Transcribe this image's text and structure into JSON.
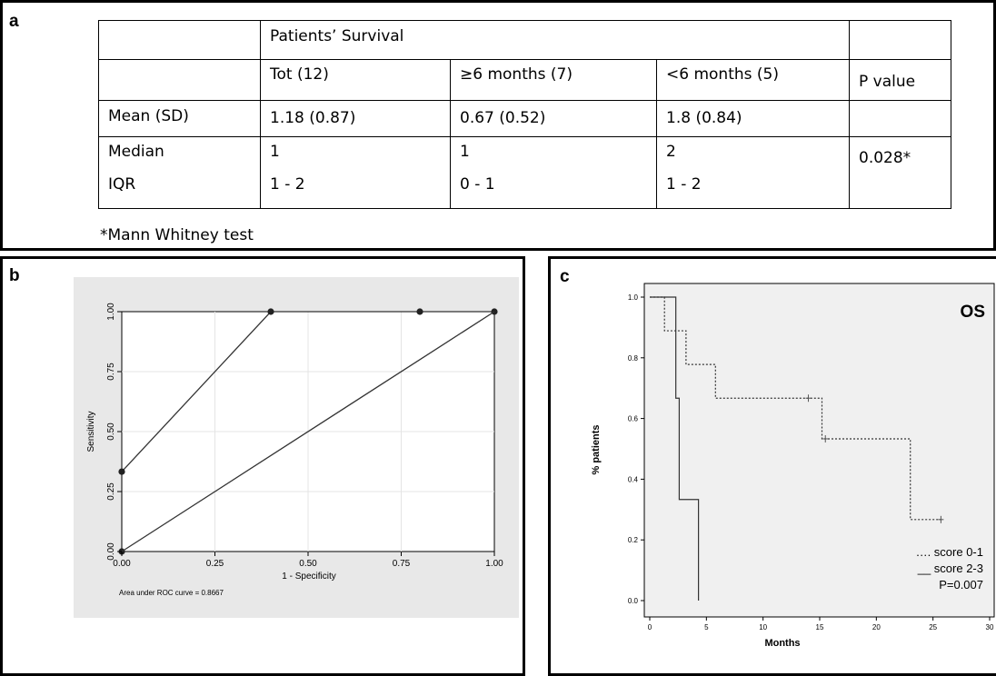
{
  "panel_a": {
    "letter": "a",
    "table": {
      "group_header": "Patients’ Survival",
      "columns": [
        "Tot (12)",
        "≥6 months (7)",
        "<6 months (5)",
        "P value"
      ],
      "rows": [
        {
          "label": "Mean (SD)",
          "values": [
            "1.18 (0.87)",
            "0.67 (0.52)",
            "1.8 (0.84)"
          ]
        },
        {
          "label": "Median",
          "values": [
            "1",
            "1",
            "2"
          ]
        },
        {
          "label": "IQR",
          "values": [
            "1 - 2",
            "0 - 1",
            "1 - 2"
          ]
        }
      ],
      "p_value": "0.028*"
    },
    "footnote": "*Mann Whitney test"
  },
  "panel_b": {
    "letter": "b"
  },
  "panel_c": {
    "letter": "c"
  },
  "chart_data": [
    {
      "type": "line",
      "xlabel": "1 - Specificity",
      "ylabel": "Sensitivity",
      "xlim": [
        0,
        1
      ],
      "ylim": [
        0,
        1
      ],
      "xticks": [
        "0.00",
        "0.25",
        "0.50",
        "0.75",
        "1.00"
      ],
      "yticks": [
        "0.00",
        "0.25",
        "0.50",
        "0.75",
        "1.00"
      ],
      "grid": true,
      "series": [
        {
          "x": [
            0,
            0,
            0.4,
            0.8,
            1.0
          ],
          "y": [
            0,
            0.333,
            1.0,
            1.0,
            1.0
          ],
          "markers": true
        },
        {
          "x": [
            0,
            1
          ],
          "y": [
            0,
            1
          ],
          "markers": false
        }
      ],
      "annotation": "Area under ROC curve = 0.8667"
    },
    {
      "type": "line",
      "title": "OS",
      "xlabel": "Months",
      "ylabel": "% patients",
      "xlim": [
        0,
        30
      ],
      "ylim": [
        0,
        1.0
      ],
      "xticks": [
        "0",
        "5",
        "10",
        "15",
        "20",
        "25",
        "30"
      ],
      "yticks": [
        "0.0",
        "0.2",
        "0.4",
        "0.6",
        "0.8",
        "1.0"
      ],
      "series": [
        {
          "name": "score 0-1",
          "style": "dotted",
          "steps_x": [
            0,
            1.3,
            3.2,
            5.8,
            15.2,
            23.0,
            25.7
          ],
          "steps_y": [
            1.0,
            0.889,
            0.778,
            0.667,
            0.533,
            0.267,
            0.267
          ],
          "censored_x": [
            14.0,
            15.5,
            25.7
          ],
          "censored_y": [
            0.667,
            0.533,
            0.267
          ]
        },
        {
          "name": "score 2-3",
          "style": "solid",
          "steps_x": [
            0,
            2.3,
            2.6,
            4.3
          ],
          "steps_y": [
            1.0,
            0.667,
            0.333,
            0.0
          ]
        }
      ],
      "legend": [
        "…. score 0-1",
        "__ score 2-3",
        "P=0.007"
      ]
    }
  ]
}
